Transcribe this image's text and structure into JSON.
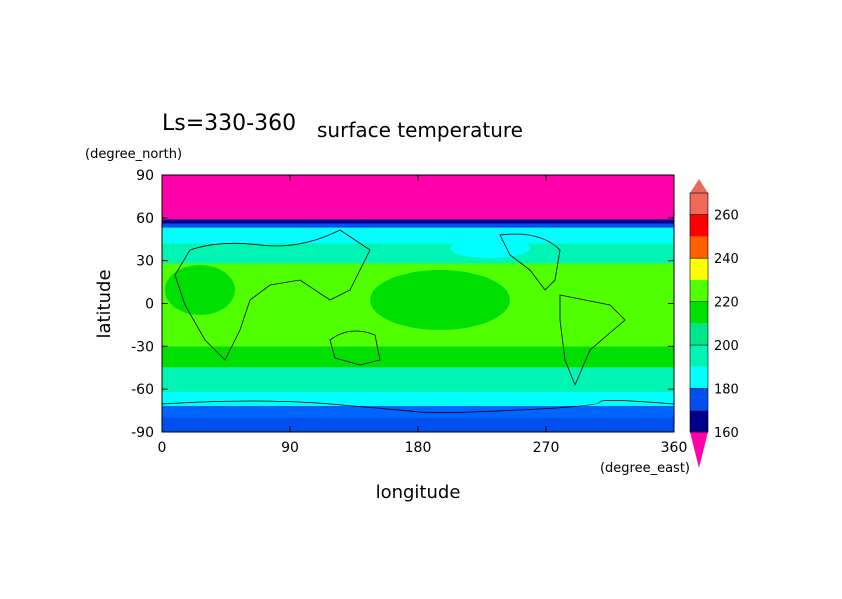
{
  "chart_data": {
    "type": "contour",
    "title": "surface temperature",
    "subtitle": "Ls=330-360",
    "xlabel": "longitude",
    "ylabel": "latitude",
    "xunit": "(degree_east)",
    "yunit": "(degree_north)",
    "xlim": [
      0,
      360
    ],
    "ylim": [
      -90,
      90
    ],
    "xticks": [
      0,
      90,
      180,
      270,
      360
    ],
    "yticks": [
      90,
      60,
      30,
      0,
      -30,
      -60,
      -90
    ],
    "colorbar": {
      "levels": [
        160,
        170,
        180,
        190,
        200,
        210,
        220,
        230,
        240,
        250,
        260,
        270
      ],
      "colors": [
        "#00008c",
        "#0050f0",
        "#00ffff",
        "#00f5b4",
        "#00e68c",
        "#00e000",
        "#50ff00",
        "#ffff00",
        "#ff6000",
        "#ff0000",
        "#f06a5a"
      ],
      "under_color": "#ff00aa",
      "over_color": "#e86a5a",
      "ticks": [
        160,
        180,
        200,
        220,
        240,
        260
      ]
    }
  }
}
